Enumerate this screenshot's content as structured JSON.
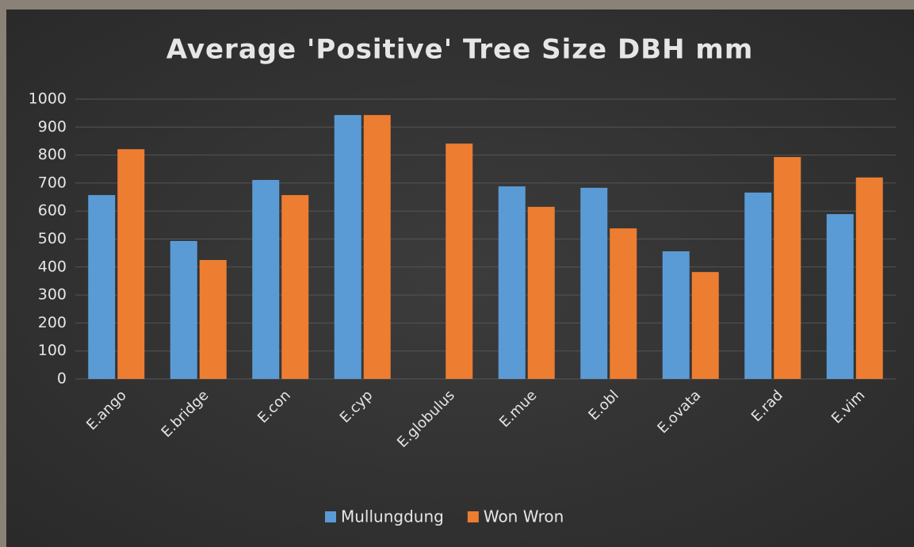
{
  "chart_data": {
    "type": "bar",
    "title": "Average 'Positive' Tree Size DBH mm",
    "categories": [
      "E.ango",
      "E.bridge",
      "E.con",
      "E.cyp",
      "E.globulus",
      "E.mue",
      "E.obl",
      "E.ovata",
      "E.rad",
      "E.vim"
    ],
    "series": [
      {
        "name": "Mullungdung",
        "color": "#5b9bd5",
        "values": [
          657,
          493,
          711,
          943,
          null,
          688,
          683,
          456,
          666,
          589
        ]
      },
      {
        "name": "Won Wron",
        "color": "#ed7d31",
        "values": [
          821,
          425,
          657,
          943,
          841,
          615,
          538,
          382,
          793,
          720
        ]
      }
    ],
    "ylim": [
      0,
      1000
    ],
    "yticks": [
      0,
      100,
      200,
      300,
      400,
      500,
      600,
      700,
      800,
      900,
      1000
    ],
    "grid": true,
    "legend": "bottom"
  }
}
